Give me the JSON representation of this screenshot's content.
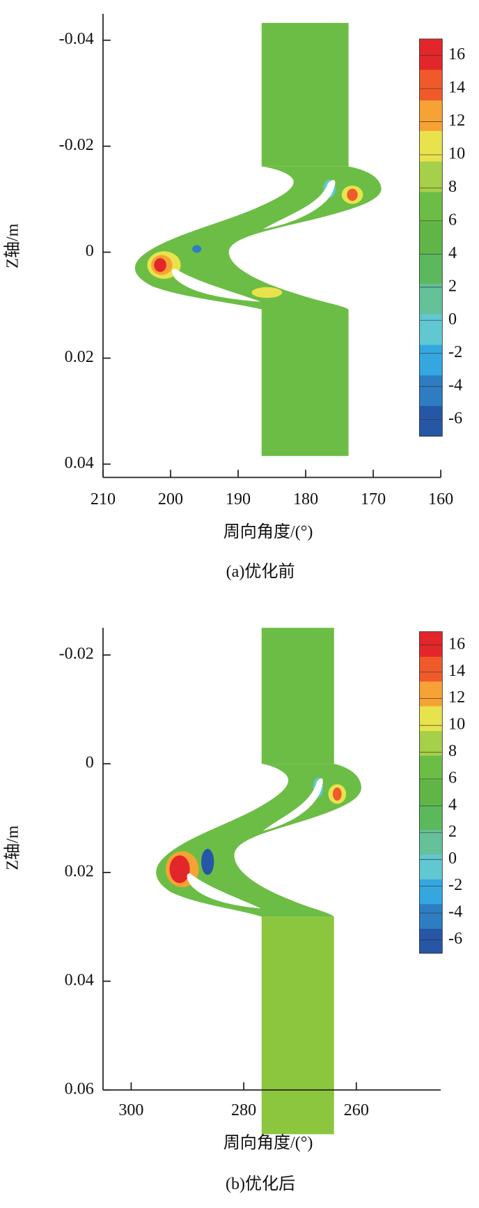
{
  "chart_data": [
    {
      "type": "contour",
      "ylabel": "Z轴/m",
      "xlabel": "周向角度/(°)",
      "caption": "(a)优化前",
      "xlim": [
        210,
        160
      ],
      "ylim": [
        -0.045,
        0.0425
      ],
      "xticks": [
        210,
        200,
        190,
        180,
        170,
        160
      ],
      "yticks": [
        -0.04,
        -0.02,
        0,
        0.02,
        0.04
      ],
      "colorbar": {
        "clim": [
          -7,
          17
        ],
        "ticks": [
          16,
          14,
          12,
          10,
          8,
          6,
          4,
          2,
          0,
          -2,
          -4,
          -6
        ],
        "colors": [
          "#2656a6",
          "#2e7dc3",
          "#34a7df",
          "#61c8d2",
          "#64c19a",
          "#5cb85c",
          "#5fb546",
          "#6cbd45",
          "#a6cf4a",
          "#e8e34c",
          "#f7a234",
          "#f05a2a",
          "#e3262a"
        ]
      }
    },
    {
      "type": "contour",
      "ylabel": "Z轴/m",
      "xlabel": "周向角度/(°)",
      "caption": "(b)优化后",
      "xlim": [
        305,
        245
      ],
      "ylim": [
        -0.025,
        0.06
      ],
      "xticks": [
        300,
        280,
        260
      ],
      "yticks": [
        -0.02,
        0,
        0.02,
        0.04,
        0.06
      ],
      "colorbar": {
        "clim": [
          -7,
          17
        ],
        "ticks": [
          16,
          14,
          12,
          10,
          8,
          6,
          4,
          2,
          0,
          -2,
          -4,
          -6
        ],
        "colors": [
          "#2656a6",
          "#2e7dc3",
          "#34a7df",
          "#61c8d2",
          "#64c19a",
          "#5cb85c",
          "#5fb546",
          "#6cbd45",
          "#a6cf4a",
          "#e8e34c",
          "#f7a234",
          "#f05a2a",
          "#e3262a"
        ]
      }
    }
  ]
}
